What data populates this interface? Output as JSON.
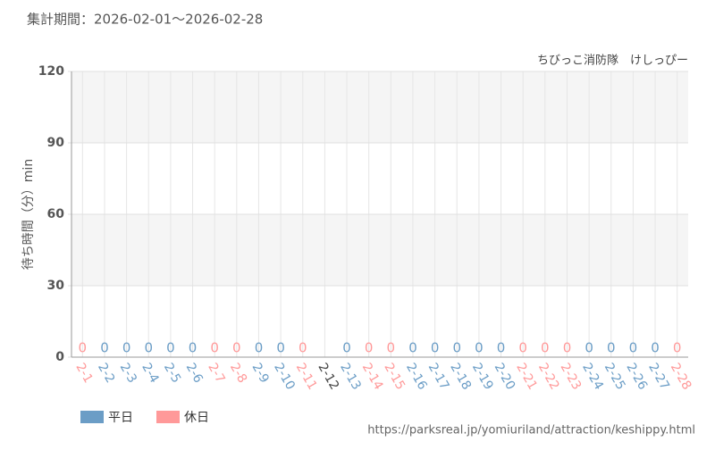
{
  "chart_data": {
    "type": "bar",
    "title": "集計期間：2026-02-01～2026-02-28",
    "subtitle": "ちびっこ消防隊　けしっぴー",
    "y_label": "待ち時間（分）min",
    "source": "https://parksreal.jp/yomiuriland/attraction/keshippy.html",
    "categories": [
      "2-1",
      "2-2",
      "2-3",
      "2-4",
      "2-5",
      "2-6",
      "2-7",
      "2-8",
      "2-9",
      "2-10",
      "2-11",
      "2-12",
      "2-13",
      "2-14",
      "2-15",
      "2-16",
      "2-17",
      "2-18",
      "2-19",
      "2-20",
      "2-21",
      "2-22",
      "2-23",
      "2-24",
      "2-25",
      "2-26",
      "2-27",
      "2-28"
    ],
    "series": [
      {
        "name": "平日",
        "color": "#6b9dc6",
        "values": [
          null,
          0,
          0,
          0,
          0,
          0,
          null,
          null,
          0,
          0,
          null,
          null,
          0,
          null,
          null,
          0,
          0,
          0,
          0,
          0,
          null,
          null,
          null,
          0,
          0,
          0,
          0,
          null
        ]
      },
      {
        "name": "休日",
        "color": "#ff9999",
        "values": [
          0,
          null,
          null,
          null,
          null,
          null,
          0,
          0,
          null,
          null,
          0,
          null,
          null,
          0,
          0,
          null,
          null,
          null,
          null,
          null,
          0,
          0,
          0,
          null,
          null,
          null,
          null,
          0
        ]
      }
    ],
    "ylim": [
      0,
      120
    ],
    "yticks": [
      0,
      30,
      60,
      90,
      120
    ],
    "grid": true
  }
}
